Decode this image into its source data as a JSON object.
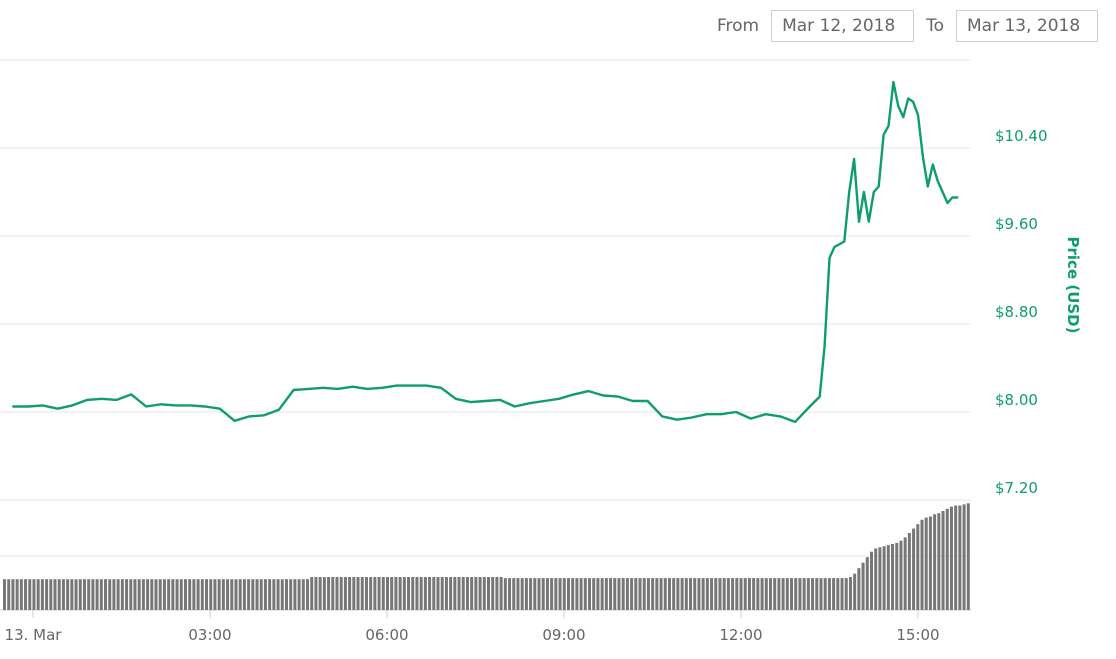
{
  "controls": {
    "from_label": "From",
    "from_value": "Mar 12, 2018",
    "to_label": "To",
    "to_value": "Mar 13, 2018"
  },
  "colors": {
    "price_line": "#0f9d6e",
    "volume_bars": "#777777",
    "grid": "#e6e6e6",
    "text": "#666666"
  },
  "chart_data": [
    {
      "type": "line",
      "title": "",
      "ylabel": "Price (USD)",
      "ylim": [
        7.2,
        11.2
      ],
      "yticks": [
        7.2,
        8.0,
        8.8,
        9.6,
        10.4
      ],
      "ytick_labels": [
        "$7.20",
        "$8.00",
        "$8.80",
        "$9.60",
        "$10.40"
      ],
      "xlim": [
        "2018-03-12 23:40",
        "2018-03-13 16:00"
      ],
      "xticks": [
        "2018-03-13 00:00",
        "2018-03-13 03:00",
        "2018-03-13 06:00",
        "2018-03-13 09:00",
        "2018-03-13 12:00",
        "2018-03-13 15:00"
      ],
      "xtick_labels": [
        "13. Mar",
        "03:00",
        "06:00",
        "09:00",
        "12:00",
        "15:00"
      ],
      "grid": true,
      "series": [
        {
          "name": "",
          "x": [
            "2018-03-12 23:40",
            "2018-03-12 23:55",
            "2018-03-13 00:10",
            "2018-03-13 00:25",
            "2018-03-13 00:40",
            "2018-03-13 00:55",
            "2018-03-13 01:10",
            "2018-03-13 01:25",
            "2018-03-13 01:40",
            "2018-03-13 01:55",
            "2018-03-13 02:10",
            "2018-03-13 02:25",
            "2018-03-13 02:40",
            "2018-03-13 02:55",
            "2018-03-13 03:10",
            "2018-03-13 03:25",
            "2018-03-13 03:40",
            "2018-03-13 03:55",
            "2018-03-13 04:10",
            "2018-03-13 04:25",
            "2018-03-13 04:40",
            "2018-03-13 04:55",
            "2018-03-13 05:10",
            "2018-03-13 05:25",
            "2018-03-13 05:40",
            "2018-03-13 05:55",
            "2018-03-13 06:10",
            "2018-03-13 06:25",
            "2018-03-13 06:40",
            "2018-03-13 06:55",
            "2018-03-13 07:10",
            "2018-03-13 07:25",
            "2018-03-13 07:40",
            "2018-03-13 07:55",
            "2018-03-13 08:10",
            "2018-03-13 08:25",
            "2018-03-13 08:40",
            "2018-03-13 08:55",
            "2018-03-13 09:10",
            "2018-03-13 09:25",
            "2018-03-13 09:40",
            "2018-03-13 09:55",
            "2018-03-13 10:10",
            "2018-03-13 10:25",
            "2018-03-13 10:40",
            "2018-03-13 10:55",
            "2018-03-13 11:10",
            "2018-03-13 11:25",
            "2018-03-13 11:40",
            "2018-03-13 11:55",
            "2018-03-13 12:10",
            "2018-03-13 12:25",
            "2018-03-13 12:40",
            "2018-03-13 12:55",
            "2018-03-13 13:10",
            "2018-03-13 13:20",
            "2018-03-13 13:25",
            "2018-03-13 13:30",
            "2018-03-13 13:35",
            "2018-03-13 13:45",
            "2018-03-13 13:50",
            "2018-03-13 13:55",
            "2018-03-13 14:00",
            "2018-03-13 14:05",
            "2018-03-13 14:10",
            "2018-03-13 14:15",
            "2018-03-13 14:20",
            "2018-03-13 14:25",
            "2018-03-13 14:30",
            "2018-03-13 14:35",
            "2018-03-13 14:40",
            "2018-03-13 14:45",
            "2018-03-13 14:50",
            "2018-03-13 14:55",
            "2018-03-13 15:00",
            "2018-03-13 15:05",
            "2018-03-13 15:10",
            "2018-03-13 15:15",
            "2018-03-13 15:20",
            "2018-03-13 15:25",
            "2018-03-13 15:30",
            "2018-03-13 15:35",
            "2018-03-13 15:40"
          ],
          "values": [
            8.05,
            8.05,
            8.06,
            8.03,
            8.06,
            8.11,
            8.12,
            8.11,
            8.16,
            8.05,
            8.07,
            8.06,
            8.06,
            8.05,
            8.03,
            7.92,
            7.96,
            7.97,
            8.02,
            8.2,
            8.21,
            8.22,
            8.21,
            8.23,
            8.21,
            8.22,
            8.24,
            8.24,
            8.24,
            8.22,
            8.12,
            8.09,
            8.1,
            8.11,
            8.05,
            8.08,
            8.1,
            8.12,
            8.16,
            8.19,
            8.15,
            8.14,
            8.1,
            8.1,
            7.96,
            7.93,
            7.95,
            7.98,
            7.98,
            8.0,
            7.94,
            7.98,
            7.96,
            7.91,
            8.05,
            8.14,
            8.6,
            9.4,
            9.5,
            9.55,
            10.0,
            10.3,
            9.73,
            10.0,
            9.73,
            10.0,
            10.05,
            10.52,
            10.6,
            11.0,
            10.78,
            10.68,
            10.85,
            10.82,
            10.7,
            10.32,
            10.05,
            10.25,
            10.1,
            10.0,
            9.9,
            9.95,
            9.95
          ]
        }
      ]
    },
    {
      "type": "bar",
      "title": "",
      "ylabel": "",
      "ylim": [
        0,
        100
      ],
      "grid": true,
      "series": [
        {
          "name": "",
          "values": [
            28,
            28,
            28,
            28,
            28,
            28,
            28,
            28,
            28,
            28,
            28,
            28,
            28,
            28,
            28,
            28,
            28,
            28,
            28,
            28,
            28,
            28,
            28,
            28,
            28,
            28,
            28,
            28,
            28,
            28,
            28,
            28,
            28,
            28,
            28,
            28,
            28,
            28,
            28,
            28,
            28,
            28,
            28,
            28,
            28,
            28,
            28,
            28,
            28,
            28,
            28,
            28,
            28,
            28,
            28,
            28,
            28,
            28,
            28,
            28,
            28,
            28,
            28,
            28,
            28,
            28,
            28,
            28,
            28,
            28,
            28,
            28,
            28,
            30,
            30,
            30,
            30,
            30,
            30,
            30,
            30,
            30,
            30,
            30,
            30,
            30,
            30,
            30,
            30,
            30,
            30,
            30,
            30,
            30,
            30,
            30,
            30,
            30,
            30,
            30,
            30,
            30,
            30,
            30,
            30,
            30,
            30,
            30,
            30,
            30,
            30,
            30,
            30,
            30,
            30,
            30,
            30,
            30,
            30,
            29,
            29,
            29,
            29,
            29,
            29,
            29,
            29,
            29,
            29,
            29,
            29,
            29,
            29,
            29,
            29,
            29,
            29,
            29,
            29,
            29,
            29,
            29,
            29,
            29,
            29,
            29,
            29,
            29,
            29,
            29,
            29,
            29,
            29,
            29,
            29,
            29,
            29,
            29,
            29,
            29,
            29,
            29,
            29,
            29,
            29,
            29,
            29,
            29,
            29,
            29,
            29,
            29,
            29,
            29,
            29,
            29,
            29,
            29,
            29,
            29,
            29,
            29,
            29,
            29,
            29,
            29,
            29,
            29,
            29,
            29,
            29,
            29,
            29,
            29,
            29,
            29,
            29,
            29,
            29,
            29,
            29,
            30,
            33,
            38,
            43,
            48,
            53,
            56,
            57,
            58,
            59,
            60,
            61,
            63,
            66,
            70,
            74,
            78,
            82,
            84,
            85,
            87,
            88,
            90,
            92,
            94,
            95,
            95,
            96,
            97
          ]
        }
      ]
    }
  ]
}
